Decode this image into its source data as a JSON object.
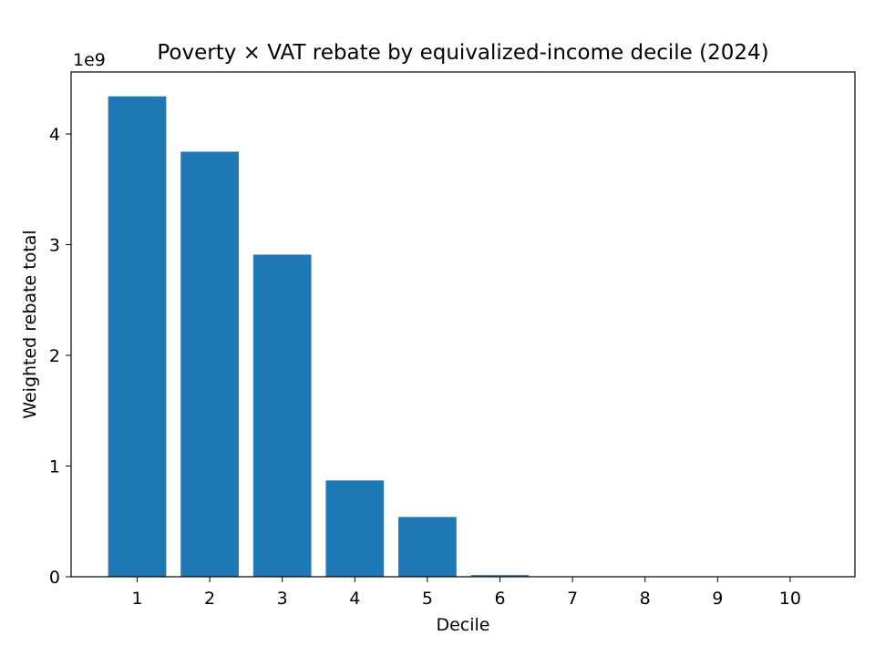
{
  "chart_data": {
    "type": "bar",
    "title": "Poverty × VAT rebate by equivalized-income decile (2024)",
    "xlabel": "Decile",
    "ylabel": "Weighted rebate total",
    "offset_label": "1e9",
    "categories": [
      "1",
      "2",
      "3",
      "4",
      "5",
      "6",
      "7",
      "8",
      "9",
      "10"
    ],
    "values": [
      4.34,
      3.84,
      2.91,
      0.87,
      0.54,
      0.015,
      0.0,
      0.0,
      0.0,
      0.0
    ],
    "value_unit_multiplier": 1000000000.0,
    "ylim": [
      0,
      4.56
    ],
    "yticks": [
      "0",
      "1",
      "2",
      "3",
      "4"
    ],
    "bar_color": "#1f77b4",
    "grid": false,
    "legend": "none"
  }
}
